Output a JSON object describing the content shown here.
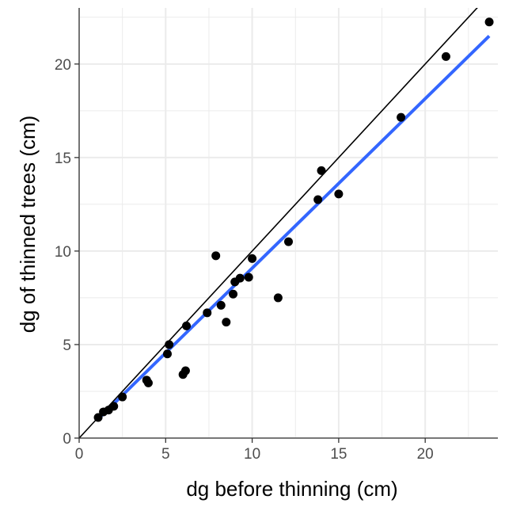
{
  "chart_data": {
    "type": "scatter",
    "title": "",
    "xlabel": "dg before thinning (cm)",
    "ylabel": "dg of thinned trees (cm)",
    "xlim": [
      0,
      24.2
    ],
    "ylim": [
      0,
      23.0
    ],
    "x_ticks": [
      0,
      5,
      10,
      15,
      20
    ],
    "y_ticks": [
      0,
      5,
      10,
      15,
      20
    ],
    "x_tick_labels": [
      "0",
      "5",
      "10",
      "15",
      "20"
    ],
    "y_tick_labels": [
      "0",
      "5",
      "10",
      "15",
      "20"
    ],
    "grid": true,
    "points": [
      {
        "x": 1.1,
        "y": 1.1
      },
      {
        "x": 1.4,
        "y": 1.4
      },
      {
        "x": 1.7,
        "y": 1.5
      },
      {
        "x": 2.0,
        "y": 1.7
      },
      {
        "x": 2.5,
        "y": 2.2
      },
      {
        "x": 3.9,
        "y": 3.1
      },
      {
        "x": 4.0,
        "y": 2.95
      },
      {
        "x": 5.1,
        "y": 4.5
      },
      {
        "x": 5.2,
        "y": 5.0
      },
      {
        "x": 6.0,
        "y": 3.4
      },
      {
        "x": 6.15,
        "y": 3.6
      },
      {
        "x": 6.2,
        "y": 6.0
      },
      {
        "x": 7.4,
        "y": 6.7
      },
      {
        "x": 7.9,
        "y": 9.75
      },
      {
        "x": 8.2,
        "y": 7.1
      },
      {
        "x": 8.5,
        "y": 6.2
      },
      {
        "x": 8.9,
        "y": 7.7
      },
      {
        "x": 9.0,
        "y": 8.35
      },
      {
        "x": 9.3,
        "y": 8.55
      },
      {
        "x": 9.8,
        "y": 8.6
      },
      {
        "x": 10.0,
        "y": 9.6
      },
      {
        "x": 11.5,
        "y": 7.5
      },
      {
        "x": 12.1,
        "y": 10.5
      },
      {
        "x": 13.8,
        "y": 12.75
      },
      {
        "x": 14.0,
        "y": 14.3
      },
      {
        "x": 15.0,
        "y": 13.05
      },
      {
        "x": 18.6,
        "y": 17.15
      },
      {
        "x": 21.2,
        "y": 20.4
      },
      {
        "x": 23.7,
        "y": 22.25
      }
    ],
    "reference_line": {
      "x": [
        0,
        24.2
      ],
      "y": [
        0,
        24.2
      ],
      "color": "#000000"
    },
    "fit_line": {
      "x": [
        1.1,
        23.7
      ],
      "y": [
        1.02,
        21.5
      ],
      "color": "#3366ff"
    },
    "colors": {
      "points": "#000000",
      "grid": "#ebebeb",
      "axis": "#333333"
    }
  }
}
